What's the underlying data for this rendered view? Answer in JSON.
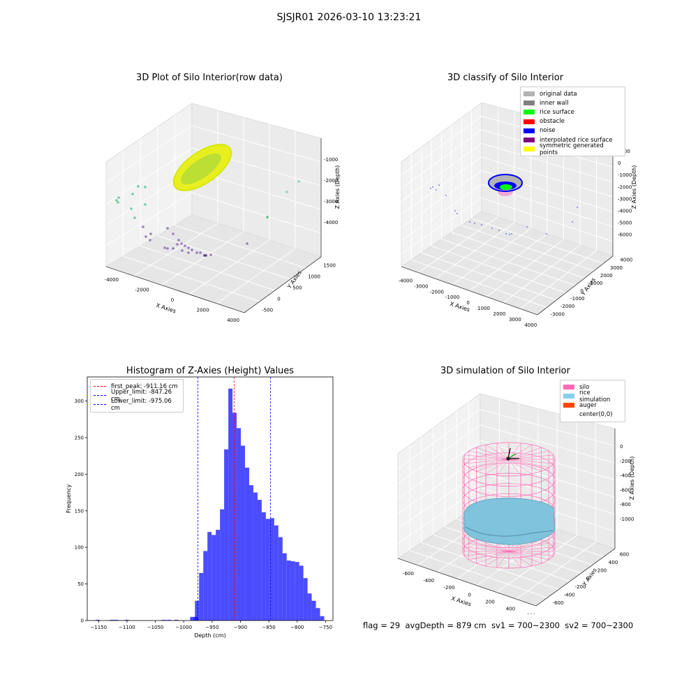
{
  "figure": {
    "suptitle": "SJSJR01 2026-03-10 13:23:21",
    "footer": "flag = 29  avgDepth = 879 cm  sv1 = 700~2300  sv2 = 700~2300"
  },
  "plots": {
    "raw": {
      "title": "3D Plot of Silo Interior(row data)",
      "xlabel": "X Axies",
      "ylabel": "Y Axies",
      "zlabel": "Z Axies (Depth)",
      "xticks": [
        "-4000",
        "-2000",
        "0",
        "2000",
        "4000"
      ],
      "yticks": [
        "-500",
        "0",
        "500",
        "1000",
        "1500"
      ],
      "zticks": [
        "-1000",
        "-2000",
        "-3000",
        "-4000"
      ]
    },
    "classify": {
      "title": "3D classify of Silo Interior",
      "xlabel": "X Axies",
      "ylabel": "Y Axies",
      "zlabel": "Z Axies (Depth)",
      "xticks": [
        "-4000",
        "-3000",
        "-2000",
        "-1000",
        "0",
        "1000",
        "2000",
        "3000",
        "4000"
      ],
      "yticks": [
        "-3000",
        "-2000",
        "-1000",
        "0",
        "1000",
        "2000",
        "3000",
        "4000"
      ],
      "zticks": [
        "1000",
        "0",
        "-1000",
        "-2000",
        "-3000",
        "-4000",
        "-5000",
        "-6000"
      ],
      "legend": [
        {
          "label": "original data",
          "color": "#b3b3b3"
        },
        {
          "label": "inner wall",
          "color": "#808080"
        },
        {
          "label": "rice surface",
          "color": "#00ff00"
        },
        {
          "label": "obstacle",
          "color": "#ff0000"
        },
        {
          "label": "noise",
          "color": "#0000ff"
        },
        {
          "label": "interpolated rice surface",
          "color": "#800080"
        },
        {
          "label": "symmetric generated points",
          "color": "#ffff00"
        }
      ]
    },
    "simulation": {
      "title": "3D simulation of Silo Interior",
      "xlabel": "X Axies",
      "ylabel": "Y Axies",
      "zlabel": "Z Axies (Depth)",
      "xticks": [
        "-600",
        "-400",
        "-200",
        "0",
        "200",
        "400",
        "600"
      ],
      "yticks": [
        "-600",
        "-400",
        "-200",
        "0",
        "200",
        "400",
        "600"
      ],
      "zticks": [
        "0",
        "-200",
        "-400",
        "-600",
        "-800",
        "-1000"
      ],
      "legend": [
        {
          "label": "silo",
          "color": "#ff69b4"
        },
        {
          "label": "rice simulation",
          "color": "#87ceeb"
        },
        {
          "label": "auger",
          "color": "#ff4500"
        },
        {
          "label": "center(0,0)",
          "color": "#ffffff"
        }
      ]
    }
  },
  "chart_data": {
    "type": "bar",
    "title": "Histogram of Z-Axies (Height) Values",
    "xlabel": "Depth (cm)",
    "ylabel": "Frequency",
    "xlim": [
      -1170,
      -737
    ],
    "ylim": [
      0,
      333
    ],
    "xticks": [
      -1150,
      -1100,
      -1050,
      -1000,
      -950,
      -900,
      -850,
      -800,
      -750
    ],
    "yticks": [
      0,
      50,
      100,
      150,
      200,
      250,
      300
    ],
    "bar_color": "#0000ff",
    "bin_width": 7.35,
    "bins": [
      [
        -1151.5,
        1
      ],
      [
        -1126.5,
        1
      ],
      [
        -1119,
        1
      ],
      [
        -1100.5,
        1
      ],
      [
        -1035,
        1
      ],
      [
        -1026,
        1
      ],
      [
        -1013,
        1
      ],
      [
        -985,
        5
      ],
      [
        -979,
        5
      ],
      [
        -976.5,
        27
      ],
      [
        -969.2,
        65
      ],
      [
        -961.8,
        95
      ],
      [
        -954.5,
        121
      ],
      [
        -947.1,
        117
      ],
      [
        -939.8,
        124
      ],
      [
        -932.4,
        152
      ],
      [
        -925.1,
        234
      ],
      [
        -917.7,
        317
      ],
      [
        -910.4,
        284
      ],
      [
        -903,
        263
      ],
      [
        -895.7,
        239
      ],
      [
        -888.3,
        209
      ],
      [
        -881,
        185
      ],
      [
        -873.6,
        175
      ],
      [
        -866.3,
        165
      ],
      [
        -858.9,
        148
      ],
      [
        -851.6,
        139
      ],
      [
        -844.2,
        140
      ],
      [
        -836.9,
        130
      ],
      [
        -829.5,
        114
      ],
      [
        -822.2,
        92
      ],
      [
        -814.8,
        82
      ],
      [
        -807.5,
        81
      ],
      [
        -800.1,
        80
      ],
      [
        -792.8,
        75
      ],
      [
        -785.4,
        58
      ],
      [
        -778.1,
        37
      ],
      [
        -770.7,
        27
      ],
      [
        -763.4,
        17
      ],
      [
        -756,
        6
      ]
    ],
    "lines": [
      {
        "label": "first_peak: -911.16 cm",
        "value": -911.16,
        "color": "#ff0000"
      },
      {
        "label": "Upper_limit: -847.26 cm",
        "value": -847.26,
        "color": "#0000ff"
      },
      {
        "label": "Lower_limit: -975.06 cm",
        "value": -975.06,
        "color": "#0000ff"
      }
    ]
  }
}
